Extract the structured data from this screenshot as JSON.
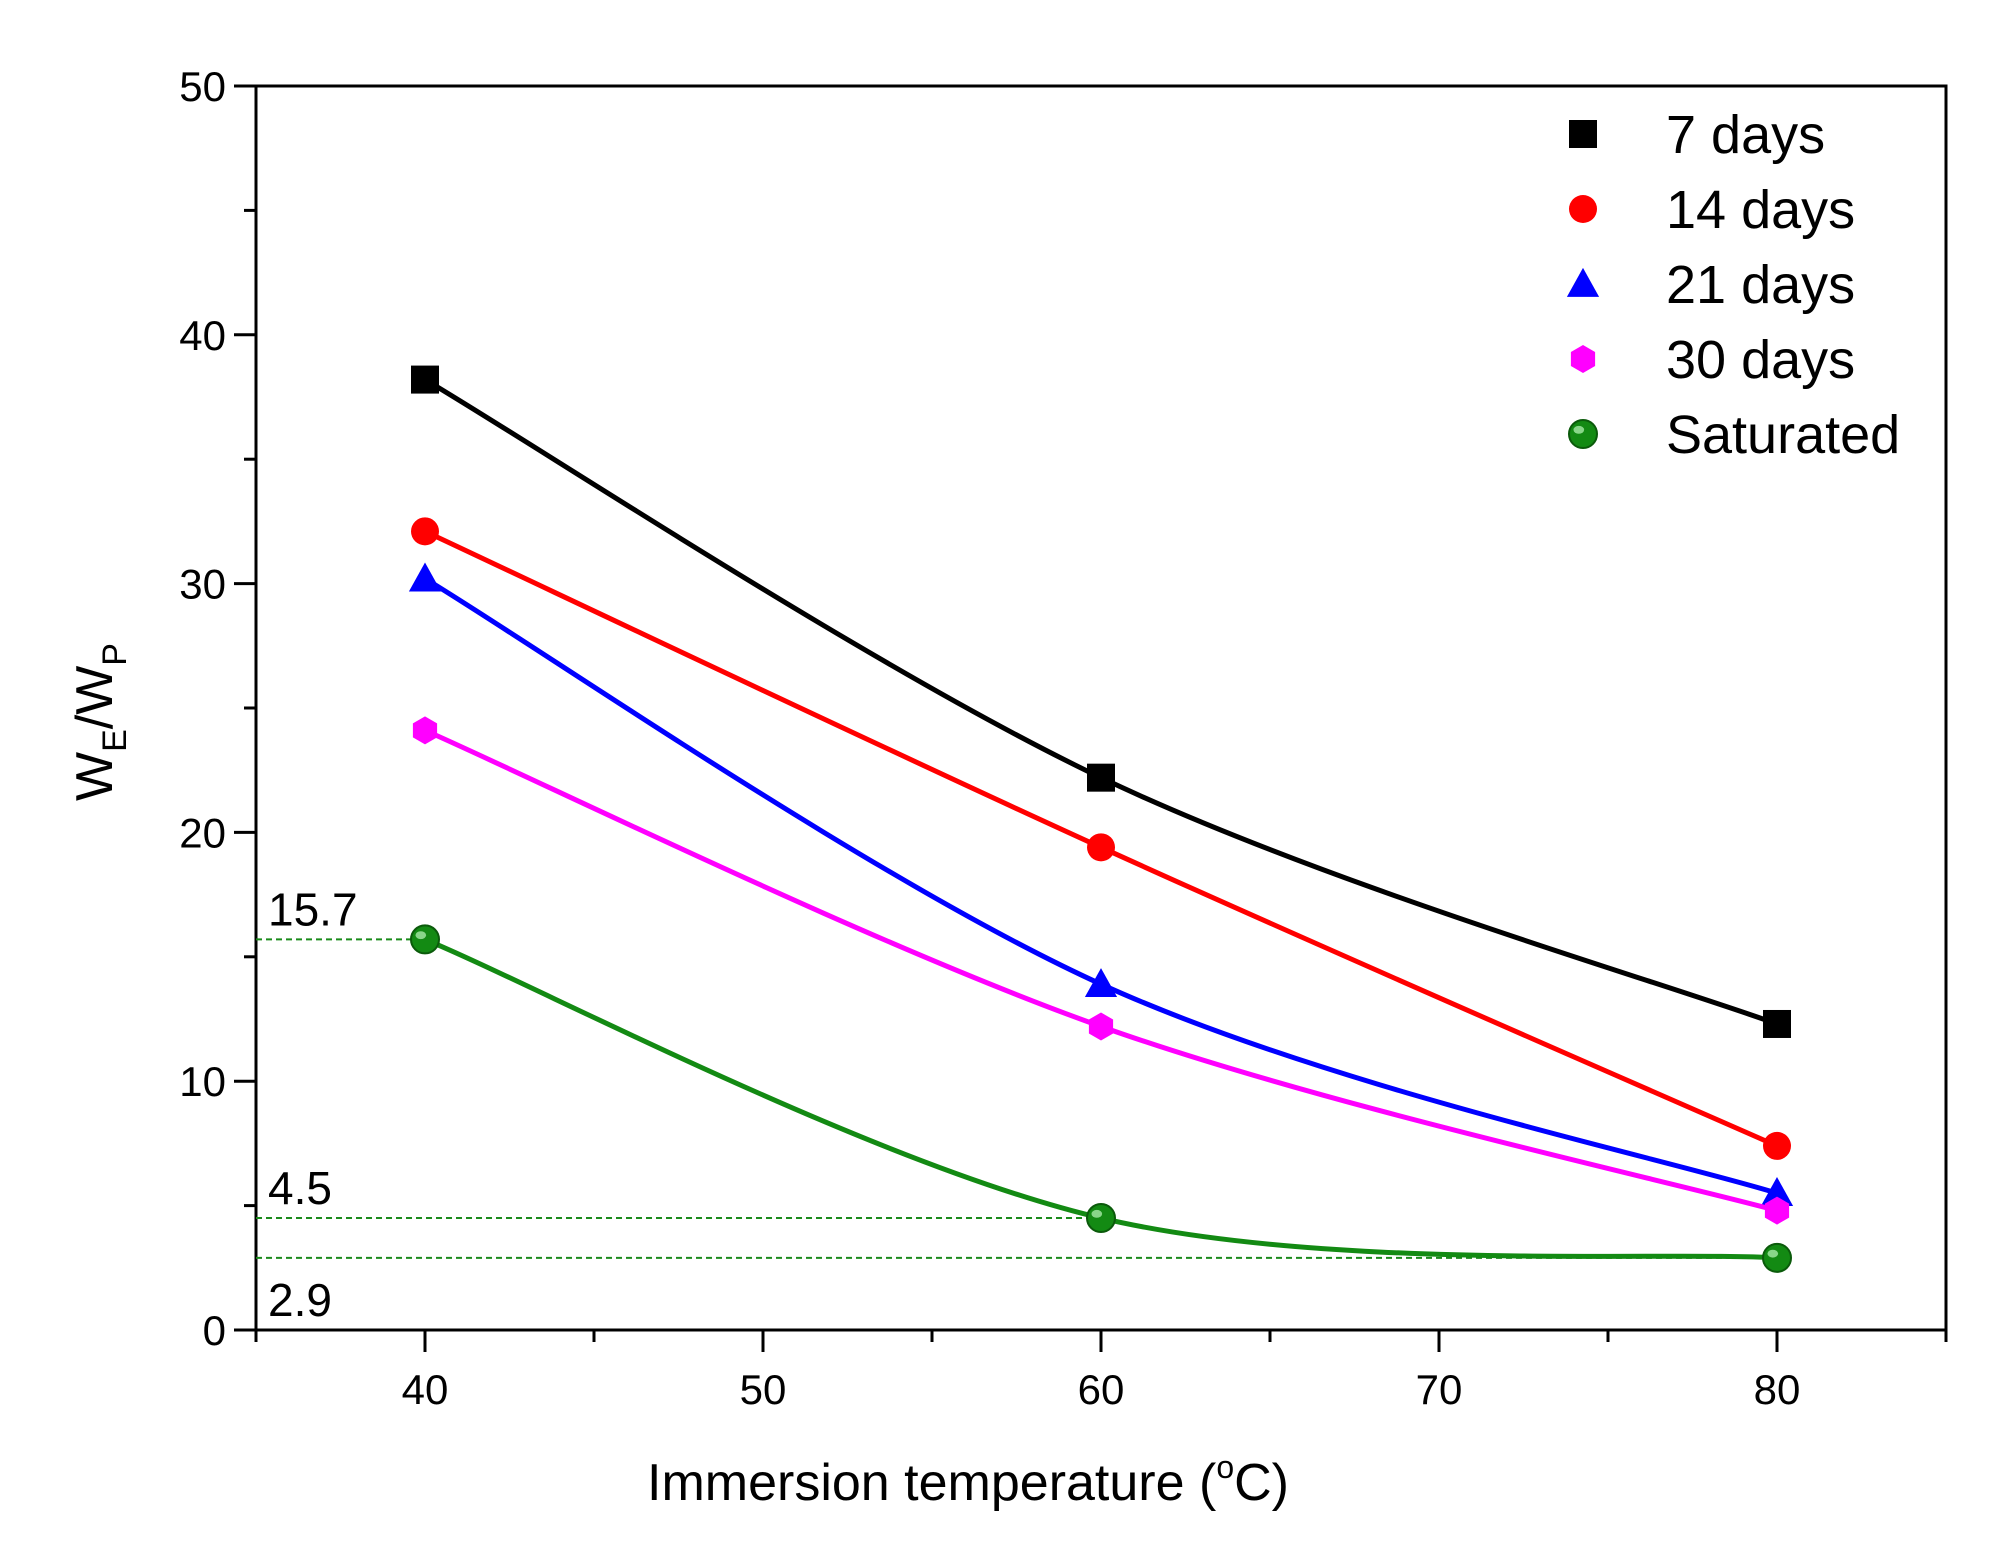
{
  "chart_data": {
    "type": "line",
    "xlabel_main": "Immersion temperature (",
    "xlabel_sup": "o",
    "xlabel_end": "C)",
    "ylabel_parts": [
      "W",
      "E",
      "/W",
      "P"
    ],
    "xlim": [
      35,
      85
    ],
    "ylim": [
      0,
      50
    ],
    "xticks": [
      40,
      50,
      60,
      70,
      80
    ],
    "yticks": [
      0,
      10,
      20,
      30,
      40,
      50
    ],
    "grid": false,
    "legend_position": "top-right",
    "series": [
      {
        "name": "7 days",
        "color": "#000000",
        "marker": "square",
        "x": [
          40,
          60,
          80
        ],
        "y": [
          38.2,
          22.2,
          12.3
        ]
      },
      {
        "name": "14 days",
        "color": "#ff0000",
        "marker": "circle",
        "x": [
          40,
          60,
          80
        ],
        "y": [
          32.1,
          19.4,
          7.4
        ]
      },
      {
        "name": "21 days",
        "color": "#0000ff",
        "marker": "triangle",
        "x": [
          40,
          60,
          80
        ],
        "y": [
          30.2,
          13.9,
          5.5
        ]
      },
      {
        "name": "30 days",
        "color": "#ff00ff",
        "marker": "hexagon",
        "x": [
          40,
          60,
          80
        ],
        "y": [
          24.1,
          12.2,
          4.8
        ]
      },
      {
        "name": "Saturated",
        "color": "#138a13",
        "marker": "sphere",
        "x": [
          40,
          60,
          80
        ],
        "y": [
          15.7,
          4.5,
          2.9
        ]
      }
    ],
    "annotations": [
      {
        "text": "15.7",
        "y": 15.7,
        "x_end": 40
      },
      {
        "text": "4.5",
        "y": 4.5,
        "x_end": 60
      },
      {
        "text": "2.9",
        "y": 2.9,
        "x_end": 80
      }
    ]
  }
}
